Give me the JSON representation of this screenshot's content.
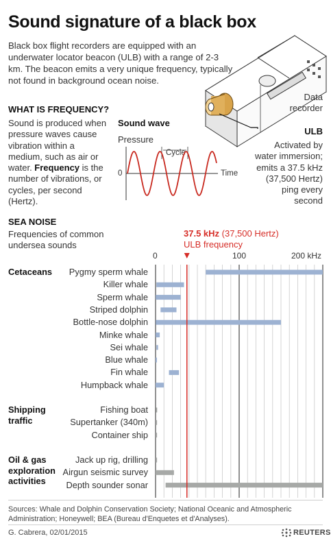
{
  "title": "Sound signature of a black box",
  "intro": "Black box flight recorders are equipped with an underwater locator beacon (ULB) with a range of 2-3 km. The beacon emits a very unique frequency, typically not found in background ocean noise.",
  "device": {
    "data_recorder": "Data\nrecorder",
    "ulb": "ULB",
    "ulb_desc": "Activated by\nwater immersion;\nemits a 37.5 kHz\n(37,500 Hertz)\nping every\nsecond"
  },
  "frequency": {
    "heading": "WHAT IS FREQUENCY?",
    "text_plain": "Sound is produced when pressure waves cause vibration within a medium, such as air or water. ",
    "text_bold": "Frequency",
    "text_end": " is the number of vibrations, or cycles, per second (Hertz)."
  },
  "wave": {
    "title": "Sound wave",
    "pressure": "Pressure",
    "cycle": "Cycle",
    "zero": "0",
    "time": "Time"
  },
  "sea_noise": {
    "heading": "SEA NOISE",
    "subtitle": "Frequencies of common\nundersea sounds",
    "ulb_value": "37.5 kHz",
    "ulb_paren": " (37,500 Hertz)",
    "ulb_label": "ULB frequency",
    "colors": {
      "cetacean": "#9db2d2",
      "industry": "#a7a9a7",
      "ulb_line": "#d62d27"
    }
  },
  "chart_data": {
    "type": "range-bar",
    "x_unit": "kHz",
    "xlim": [
      0,
      200
    ],
    "ticks": [
      {
        "value": 0,
        "label": "0"
      },
      {
        "value": 100,
        "label": "100"
      },
      {
        "value": 200,
        "label": "200 kHz"
      }
    ],
    "marker": {
      "value": 37.5,
      "label": "37.5 kHz"
    },
    "groups": [
      {
        "name": "Cetaceans",
        "color": "#9db2d2",
        "rows": [
          {
            "label": "Pygmy sperm whale",
            "range": [
              60,
              200
            ]
          },
          {
            "label": "Killer whale",
            "range": [
              1,
              34
            ]
          },
          {
            "label": "Sperm whale",
            "range": [
              0.1,
              30
            ]
          },
          {
            "label": "Striped dolphin",
            "range": [
              6,
              25
            ]
          },
          {
            "label": "Bottle-nose dolphin",
            "range": [
              0.2,
              150
            ]
          },
          {
            "label": "Minke whale",
            "range": [
              0.1,
              5
            ]
          },
          {
            "label": "Sei whale",
            "range": [
              1,
              3
            ]
          },
          {
            "label": "Blue whale",
            "range": [
              0.01,
              0.4
            ]
          },
          {
            "label": "Fin whale",
            "range": [
              16,
              28
            ]
          },
          {
            "label": "Humpback whale",
            "range": [
              0.02,
              10
            ]
          }
        ]
      },
      {
        "name": "Shipping\ntraffic",
        "color": "#a7a9a7",
        "rows": [
          {
            "label": "Fishing boat",
            "range": [
              0.25,
              1.5
            ]
          },
          {
            "label": "Supertanker (340m)",
            "range": [
              0.1,
              1.5
            ]
          },
          {
            "label": "Container ship",
            "range": [
              0.1,
              1.5
            ]
          }
        ]
      },
      {
        "name": "Oil & gas\nexploration\nactivities",
        "color": "#a7a9a7",
        "rows": [
          {
            "label": "Jack up rig, drilling",
            "range": [
              0.1,
              1.5
            ]
          },
          {
            "label": "Airgun seismic survey",
            "range": [
              0.01,
              22
            ]
          },
          {
            "label": "Depth sounder sonar",
            "range": [
              12,
              200
            ]
          }
        ]
      }
    ]
  },
  "footer": {
    "sources": "Sources: Whale and Dolphin Conservation Society; National Oceanic and Atmospheric Administration; Honeywell; BEA (Bureau d'Enquetes et d'Analyses).",
    "credit": "G. Cabrera, 02/01/2015",
    "brand": "REUTERS"
  }
}
